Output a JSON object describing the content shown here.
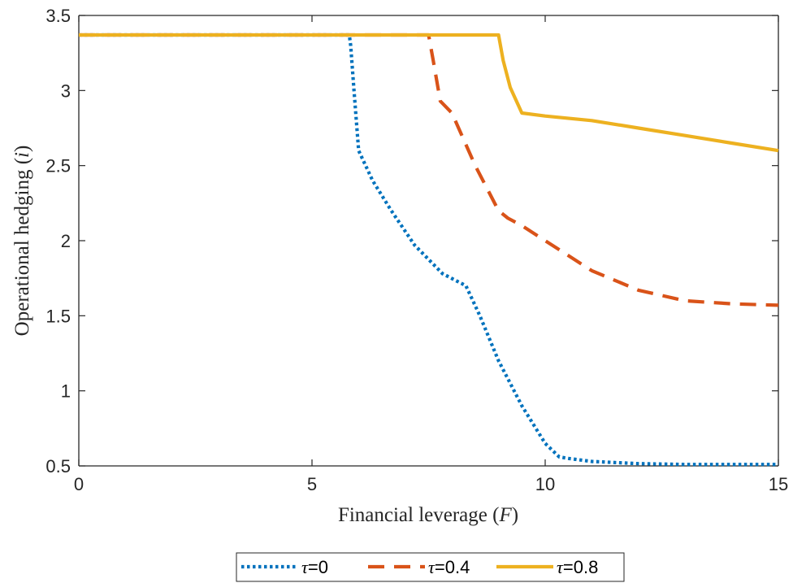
{
  "chart_data": {
    "type": "line",
    "xlabel": "Financial leverage (F)",
    "ylabel": "Operational hedging (i)",
    "xlim": [
      0,
      15
    ],
    "ylim": [
      0.5,
      3.5
    ],
    "xticks": [
      0,
      5,
      10,
      15
    ],
    "yticks": [
      0.5,
      1,
      1.5,
      2,
      2.5,
      3,
      3.5
    ],
    "grid": false,
    "legend_position": "bottom-center",
    "series": [
      {
        "name": "τ=0",
        "color": "#0072BD",
        "style": "dotted",
        "x": [
          0,
          5.8,
          5.83,
          5.9,
          6.0,
          6.3,
          6.7,
          7.2,
          7.8,
          8.3,
          8.6,
          9.0,
          9.5,
          10.0,
          10.3,
          10.5,
          11,
          12,
          13,
          14,
          15
        ],
        "y": [
          3.37,
          3.37,
          3.3,
          3.0,
          2.6,
          2.4,
          2.2,
          1.97,
          1.78,
          1.7,
          1.5,
          1.2,
          0.9,
          0.65,
          0.56,
          0.55,
          0.53,
          0.515,
          0.51,
          0.51,
          0.51
        ]
      },
      {
        "name": "τ=0.4",
        "color": "#D95319",
        "style": "dashed",
        "x": [
          0,
          7.5,
          7.6,
          7.75,
          8.0,
          8.5,
          9.0,
          9.2,
          9.5,
          10,
          11,
          12,
          13,
          14,
          15
        ],
        "y": [
          3.37,
          3.37,
          3.2,
          2.93,
          2.85,
          2.5,
          2.2,
          2.15,
          2.1,
          2.0,
          1.8,
          1.67,
          1.6,
          1.58,
          1.57
        ]
      },
      {
        "name": "τ=0.8",
        "color": "#EDB120",
        "style": "solid",
        "x": [
          0,
          9.0,
          9.1,
          9.25,
          9.5,
          10,
          11,
          12,
          13,
          14,
          15
        ],
        "y": [
          3.37,
          3.37,
          3.2,
          3.02,
          2.85,
          2.83,
          2.8,
          2.75,
          2.7,
          2.65,
          2.6
        ]
      }
    ]
  }
}
